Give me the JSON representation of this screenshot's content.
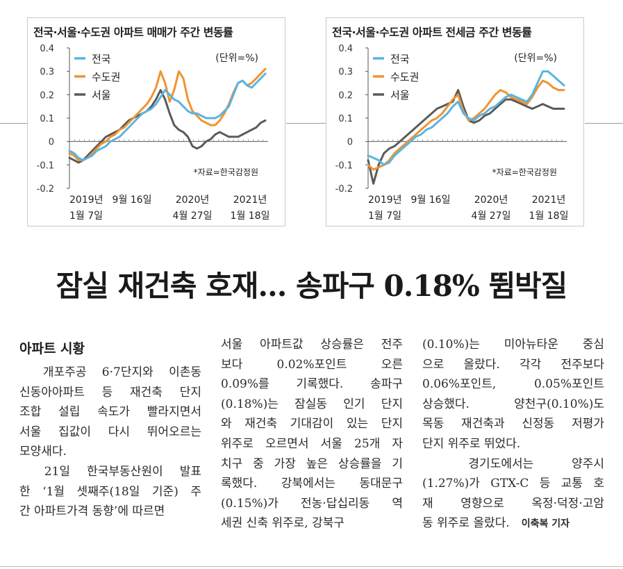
{
  "charts": [
    {
      "title": "전국·서울·수도권 아파트 매매가 주간 변동률",
      "unit": "(단위=%)",
      "source": "*자료=한국감정원",
      "legend": [
        "전국",
        "수도권",
        "서울"
      ],
      "colors": {
        "national": "#5ab4e0",
        "capital": "#f0932f",
        "seoul": "#5a5a5a"
      },
      "xlabels": [
        {
          "l1": "2019년",
          "l2": "1월 7일"
        },
        {
          "l1": "9월 16일",
          "l2": ""
        },
        {
          "l1": "2020년",
          "l2": "4월 27일"
        },
        {
          "l1": "2021년",
          "l2": "1월 18일"
        }
      ],
      "yticks": [
        "0.4",
        "0.3",
        "0.2",
        "0.1",
        "0",
        "-0.1",
        "-0.2"
      ]
    },
    {
      "title": "전국·서울·수도권 아파트 전세금 주간 변동률",
      "unit": "(단위=%)",
      "source": "*자료=한국감정원",
      "legend": [
        "전국",
        "수도권",
        "서울"
      ],
      "colors": {
        "national": "#5ab4e0",
        "capital": "#f0932f",
        "seoul": "#5a5a5a"
      },
      "xlabels": [
        {
          "l1": "2019년",
          "l2": "1월 7일"
        },
        {
          "l1": "9월 16일",
          "l2": ""
        },
        {
          "l1": "2020년",
          "l2": "4월 27일"
        },
        {
          "l1": "2021년",
          "l2": "1월 18일"
        }
      ],
      "yticks": [
        "0.4",
        "0.3",
        "0.2",
        "0.1",
        "0",
        "-0.1",
        "-0.2"
      ]
    }
  ],
  "chart_data": [
    {
      "type": "line",
      "title": "전국·서울·수도권 아파트 매매가 주간 변동률",
      "ylim": [
        -0.2,
        0.4
      ],
      "ylabel": "(단위=%)",
      "xtick_labels": [
        "2019년 1월 7일",
        "9월 16일",
        "2020년 4월 27일",
        "2021년 1월 18일"
      ],
      "series": [
        {
          "name": "전국",
          "values": [
            -0.04,
            -0.05,
            -0.07,
            -0.08,
            -0.07,
            -0.06,
            -0.04,
            -0.03,
            -0.02,
            0.0,
            0.01,
            0.02,
            0.04,
            0.06,
            0.08,
            0.1,
            0.12,
            0.13,
            0.14,
            0.16,
            0.19,
            0.22,
            0.2,
            0.18,
            0.17,
            0.15,
            0.13,
            0.12,
            0.12,
            0.11,
            0.1,
            0.1,
            0.1,
            0.11,
            0.13,
            0.15,
            0.2,
            0.25,
            0.26,
            0.24,
            0.23,
            0.25,
            0.27,
            0.29
          ]
        },
        {
          "name": "수도권",
          "values": [
            -0.05,
            -0.06,
            -0.08,
            -0.08,
            -0.07,
            -0.05,
            -0.03,
            -0.01,
            0.0,
            0.02,
            0.03,
            0.05,
            0.06,
            0.08,
            0.1,
            0.12,
            0.14,
            0.16,
            0.19,
            0.23,
            0.3,
            0.25,
            0.17,
            0.22,
            0.3,
            0.27,
            0.18,
            0.13,
            0.11,
            0.09,
            0.08,
            0.07,
            0.07,
            0.09,
            0.12,
            0.16,
            0.21,
            0.25,
            0.26,
            0.24,
            0.25,
            0.27,
            0.29,
            0.31
          ]
        },
        {
          "name": "서울",
          "values": [
            -0.07,
            -0.08,
            -0.09,
            -0.08,
            -0.06,
            -0.04,
            -0.02,
            0.0,
            0.02,
            0.03,
            0.04,
            0.05,
            0.07,
            0.09,
            0.1,
            0.11,
            0.12,
            0.13,
            0.15,
            0.18,
            0.22,
            0.18,
            0.12,
            0.07,
            0.05,
            0.04,
            0.02,
            -0.02,
            -0.03,
            -0.02,
            0.0,
            0.01,
            0.03,
            0.04,
            0.03,
            0.02,
            0.02,
            0.02,
            0.03,
            0.04,
            0.05,
            0.06,
            0.08,
            0.09
          ]
        }
      ]
    },
    {
      "type": "line",
      "title": "전국·서울·수도권 아파트 전세금 주간 변동률",
      "ylim": [
        -0.2,
        0.4
      ],
      "ylabel": "(단위=%)",
      "xtick_labels": [
        "2019년 1월 7일",
        "9월 16일",
        "2020년 4월 27일",
        "2021년 1월 18일"
      ],
      "series": [
        {
          "name": "전국",
          "values": [
            -0.06,
            -0.07,
            -0.08,
            -0.1,
            -0.09,
            -0.06,
            -0.04,
            -0.02,
            0.0,
            0.02,
            0.03,
            0.05,
            0.06,
            0.08,
            0.1,
            0.12,
            0.15,
            0.17,
            0.12,
            0.1,
            0.09,
            0.11,
            0.12,
            0.14,
            0.15,
            0.17,
            0.19,
            0.2,
            0.19,
            0.18,
            0.17,
            0.2,
            0.25,
            0.3,
            0.3,
            0.28,
            0.26,
            0.24
          ]
        },
        {
          "name": "수도권",
          "values": [
            -0.1,
            -0.12,
            -0.11,
            -0.1,
            -0.08,
            -0.05,
            -0.03,
            -0.01,
            0.01,
            0.03,
            0.05,
            0.07,
            0.09,
            0.1,
            0.12,
            0.15,
            0.18,
            0.2,
            0.13,
            0.09,
            0.1,
            0.12,
            0.14,
            0.17,
            0.2,
            0.22,
            0.21,
            0.19,
            0.18,
            0.17,
            0.16,
            0.19,
            0.23,
            0.26,
            0.25,
            0.23,
            0.22,
            0.22
          ]
        },
        {
          "name": "서울",
          "values": [
            -0.08,
            -0.18,
            -0.1,
            -0.05,
            -0.03,
            -0.02,
            0.0,
            0.02,
            0.04,
            0.06,
            0.08,
            0.1,
            0.12,
            0.14,
            0.15,
            0.16,
            0.17,
            0.22,
            0.15,
            0.09,
            0.08,
            0.09,
            0.11,
            0.12,
            0.14,
            0.16,
            0.18,
            0.18,
            0.17,
            0.16,
            0.15,
            0.14,
            0.15,
            0.16,
            0.15,
            0.14,
            0.14,
            0.14
          ]
        }
      ]
    }
  ],
  "headline": "잠실 재건축 호재… 송파구 0.18% 뜀박질",
  "section": "아파트 시황",
  "columns": [
    [
      "　개포주공 6·7단지와 이촌동",
      "신동아아파트 등 재건축 단지",
      "조합 설립 속도가 빨라지면서",
      "서울 집값이 다시 뛰어오르는",
      "모양새다.",
      "　21일 한국부동산원이 발표",
      "한 ‘1월 셋째주(18일 기준) 주",
      "간 아파트가격 동향’에 따르면"
    ],
    [
      "서울 아파트값 상승률은 전주",
      "보다 0.02%포인트 오른",
      "0.09%를 기록했다. 송파구",
      "(0.18%)는 잠실동 인기 단지",
      "와 재건축 기대감이 있는 단지",
      "위주로 오르면서 서울 25개 자",
      "치구 중 가장 높은 상승률을 기",
      "록했다. 강북에서는 동대문구",
      "(0.15%)가 전농·답십리동 역",
      "세권 신축 위주로, 강북구"
    ],
    [
      "(0.10%)는 미아뉴타운 중심",
      "으로 올랐다. 각각 전주보다",
      "0.06%포인트, 0.05%포인트",
      "상승했다. 양천구(0.10%)도",
      "목동 재건축과 신정동 저평가",
      "단지 위주로 뛰었다.",
      "　경기도에서는 양주시",
      "(1.27%)가 GTX-C 등 교통 호",
      "재 영향으로 옥정·덕정·고암",
      "동 위주로 올랐다."
    ]
  ],
  "byline": "이축복 기자"
}
